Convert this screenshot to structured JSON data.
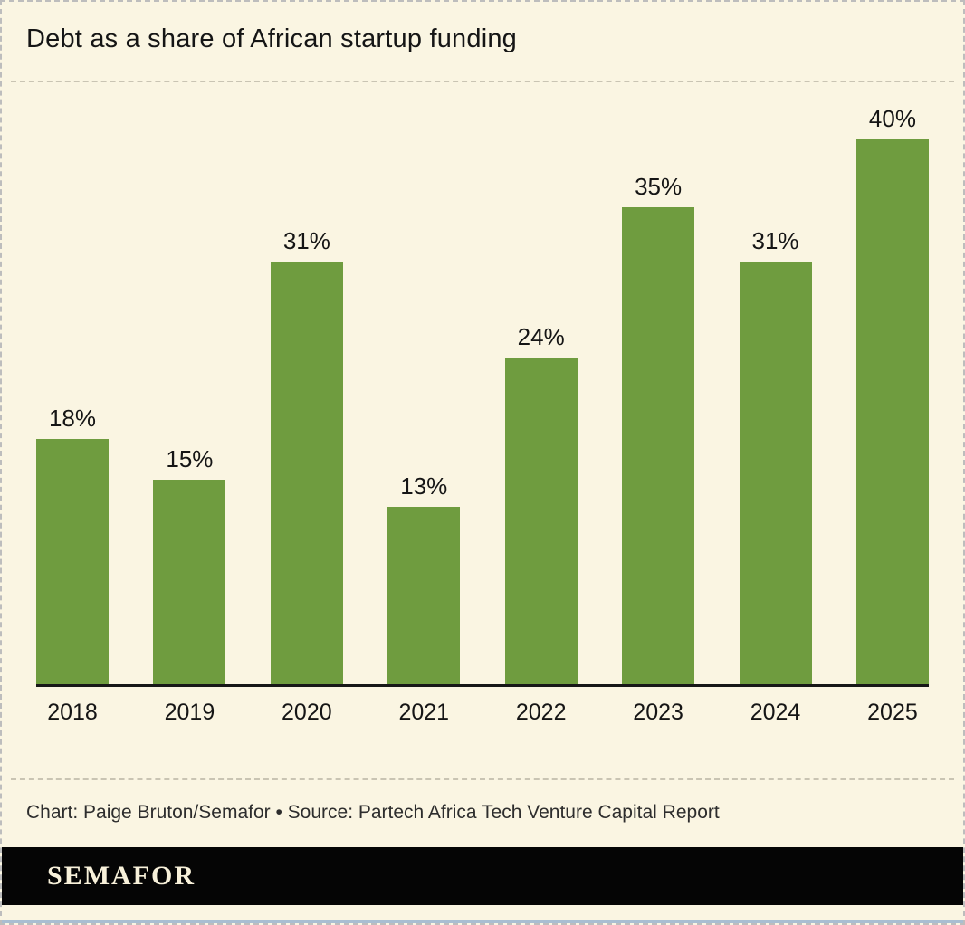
{
  "header": {
    "title": "Debt as a share of African startup funding"
  },
  "chart_data": {
    "type": "bar",
    "title": "Debt as a share of African startup funding",
    "categories": [
      "2018",
      "2019",
      "2020",
      "2021",
      "2022",
      "2023",
      "2024",
      "2025"
    ],
    "values": [
      18,
      15,
      31,
      13,
      24,
      35,
      31,
      40
    ],
    "value_labels": [
      "18%",
      "15%",
      "31%",
      "13%",
      "24%",
      "35%",
      "31%",
      "40%"
    ],
    "unit": "%",
    "xlabel": "",
    "ylabel": "",
    "ylim": [
      0,
      43.5
    ],
    "grid": false,
    "legend": false,
    "bar_color": "#6f9c3f"
  },
  "footer": {
    "credit": "Chart: Paige Bruton/Semafor • Source: Partech Africa Tech Venture Capital Report",
    "logo": "SEMAFOR"
  },
  "colors": {
    "background": "#faf5e2",
    "bar": "#6f9c3f",
    "text": "#151515",
    "divider": "#c9c4b3",
    "footer_background": "#050505",
    "footer_text": "#f8f1da",
    "bottom_accent": "#a9bed2"
  }
}
